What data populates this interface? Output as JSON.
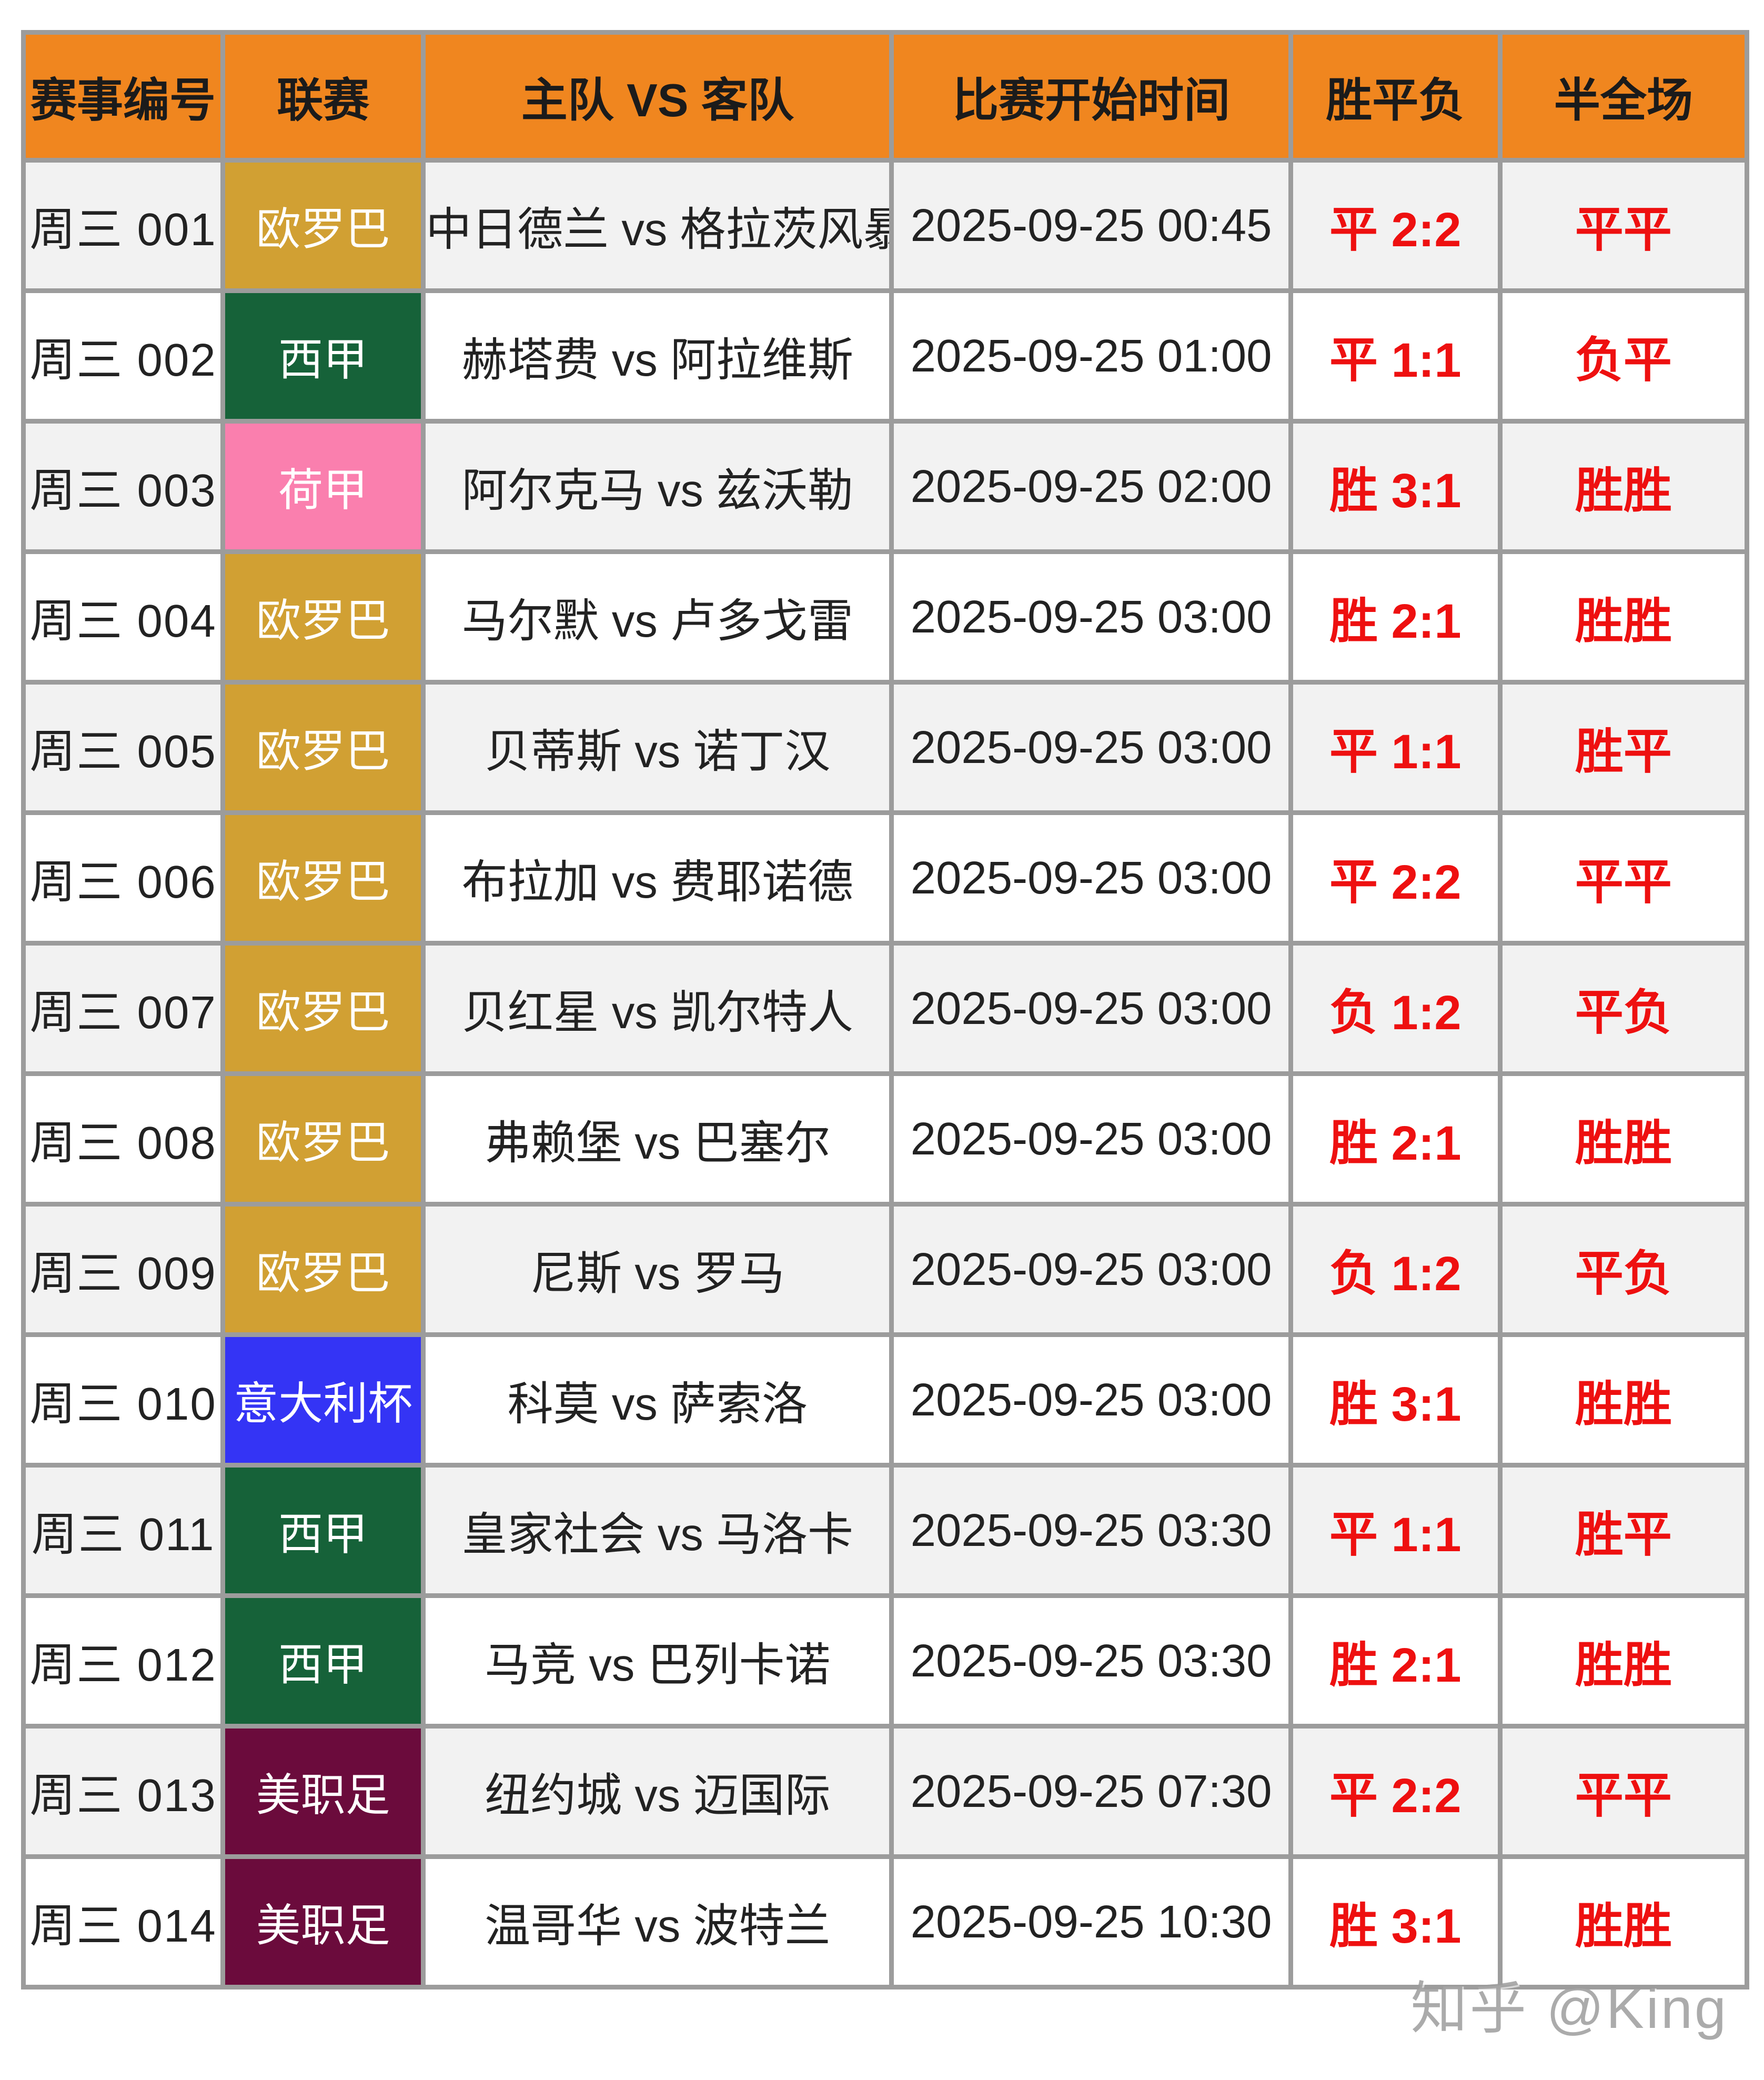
{
  "table": {
    "headers": [
      {
        "key": "id",
        "label": "赛事编号"
      },
      {
        "key": "league",
        "label": "联赛"
      },
      {
        "key": "match",
        "label": "主队 VS 客队"
      },
      {
        "key": "time",
        "label": "比赛开始时间"
      },
      {
        "key": "result",
        "label": "胜平负"
      },
      {
        "key": "halffull",
        "label": "半全场"
      }
    ],
    "rows": [
      {
        "id": "周三 001",
        "league": "欧罗巴",
        "match": "中日德兰 vs 格拉茨风暴",
        "time": "2025-09-25 00:45",
        "result": "平 2:2",
        "halffull": "平平"
      },
      {
        "id": "周三 002",
        "league": "西甲",
        "match": "赫塔费 vs 阿拉维斯",
        "time": "2025-09-25 01:00",
        "result": "平 1:1",
        "halffull": "负平"
      },
      {
        "id": "周三 003",
        "league": "荷甲",
        "match": "阿尔克马 vs 兹沃勒",
        "time": "2025-09-25 02:00",
        "result": "胜 3:1",
        "halffull": "胜胜"
      },
      {
        "id": "周三 004",
        "league": "欧罗巴",
        "match": "马尔默 vs 卢多戈雷",
        "time": "2025-09-25 03:00",
        "result": "胜 2:1",
        "halffull": "胜胜"
      },
      {
        "id": "周三 005",
        "league": "欧罗巴",
        "match": "贝蒂斯 vs 诺丁汉",
        "time": "2025-09-25 03:00",
        "result": "平 1:1",
        "halffull": "胜平"
      },
      {
        "id": "周三 006",
        "league": "欧罗巴",
        "match": "布拉加 vs 费耶诺德",
        "time": "2025-09-25 03:00",
        "result": "平 2:2",
        "halffull": "平平"
      },
      {
        "id": "周三 007",
        "league": "欧罗巴",
        "match": "贝红星 vs 凯尔特人",
        "time": "2025-09-25 03:00",
        "result": "负 1:2",
        "halffull": "平负"
      },
      {
        "id": "周三 008",
        "league": "欧罗巴",
        "match": "弗赖堡 vs 巴塞尔",
        "time": "2025-09-25 03:00",
        "result": "胜 2:1",
        "halffull": "胜胜"
      },
      {
        "id": "周三 009",
        "league": "欧罗巴",
        "match": "尼斯 vs 罗马",
        "time": "2025-09-25 03:00",
        "result": "负 1:2",
        "halffull": "平负"
      },
      {
        "id": "周三 010",
        "league": "意大利杯",
        "match": "科莫 vs 萨索洛",
        "time": "2025-09-25 03:00",
        "result": "胜 3:1",
        "halffull": "胜胜"
      },
      {
        "id": "周三 011",
        "league": "西甲",
        "match": "皇家社会 vs 马洛卡",
        "time": "2025-09-25 03:30",
        "result": "平 1:1",
        "halffull": "胜平"
      },
      {
        "id": "周三 012",
        "league": "西甲",
        "match": "马竞 vs 巴列卡诺",
        "time": "2025-09-25 03:30",
        "result": "胜 2:1",
        "halffull": "胜胜"
      },
      {
        "id": "周三 013",
        "league": "美职足",
        "match": "纽约城 vs 迈国际",
        "time": "2025-09-25 07:30",
        "result": "平 2:2",
        "halffull": "平平"
      },
      {
        "id": "周三 014",
        "league": "美职足",
        "match": "温哥华 vs 波特兰",
        "time": "2025-09-25 10:30",
        "result": "胜 3:1",
        "halffull": "胜胜"
      }
    ]
  },
  "league_colors": {
    "欧罗巴": "#d1a033",
    "西甲": "#166239",
    "荷甲": "#fa7fae",
    "意大利杯": "#3434f5",
    "美职足": "#6b0b3c"
  },
  "colors": {
    "header_bg": "#f0861f",
    "header_text": "#1b1b1b",
    "prediction_red": "#ee1010",
    "border_gray": "#9c9c9c",
    "row_alt_bg": "#f2f2f2",
    "row_bg": "#ffffff",
    "body_text": "#222222"
  },
  "watermark": {
    "text": "知乎 @King"
  }
}
